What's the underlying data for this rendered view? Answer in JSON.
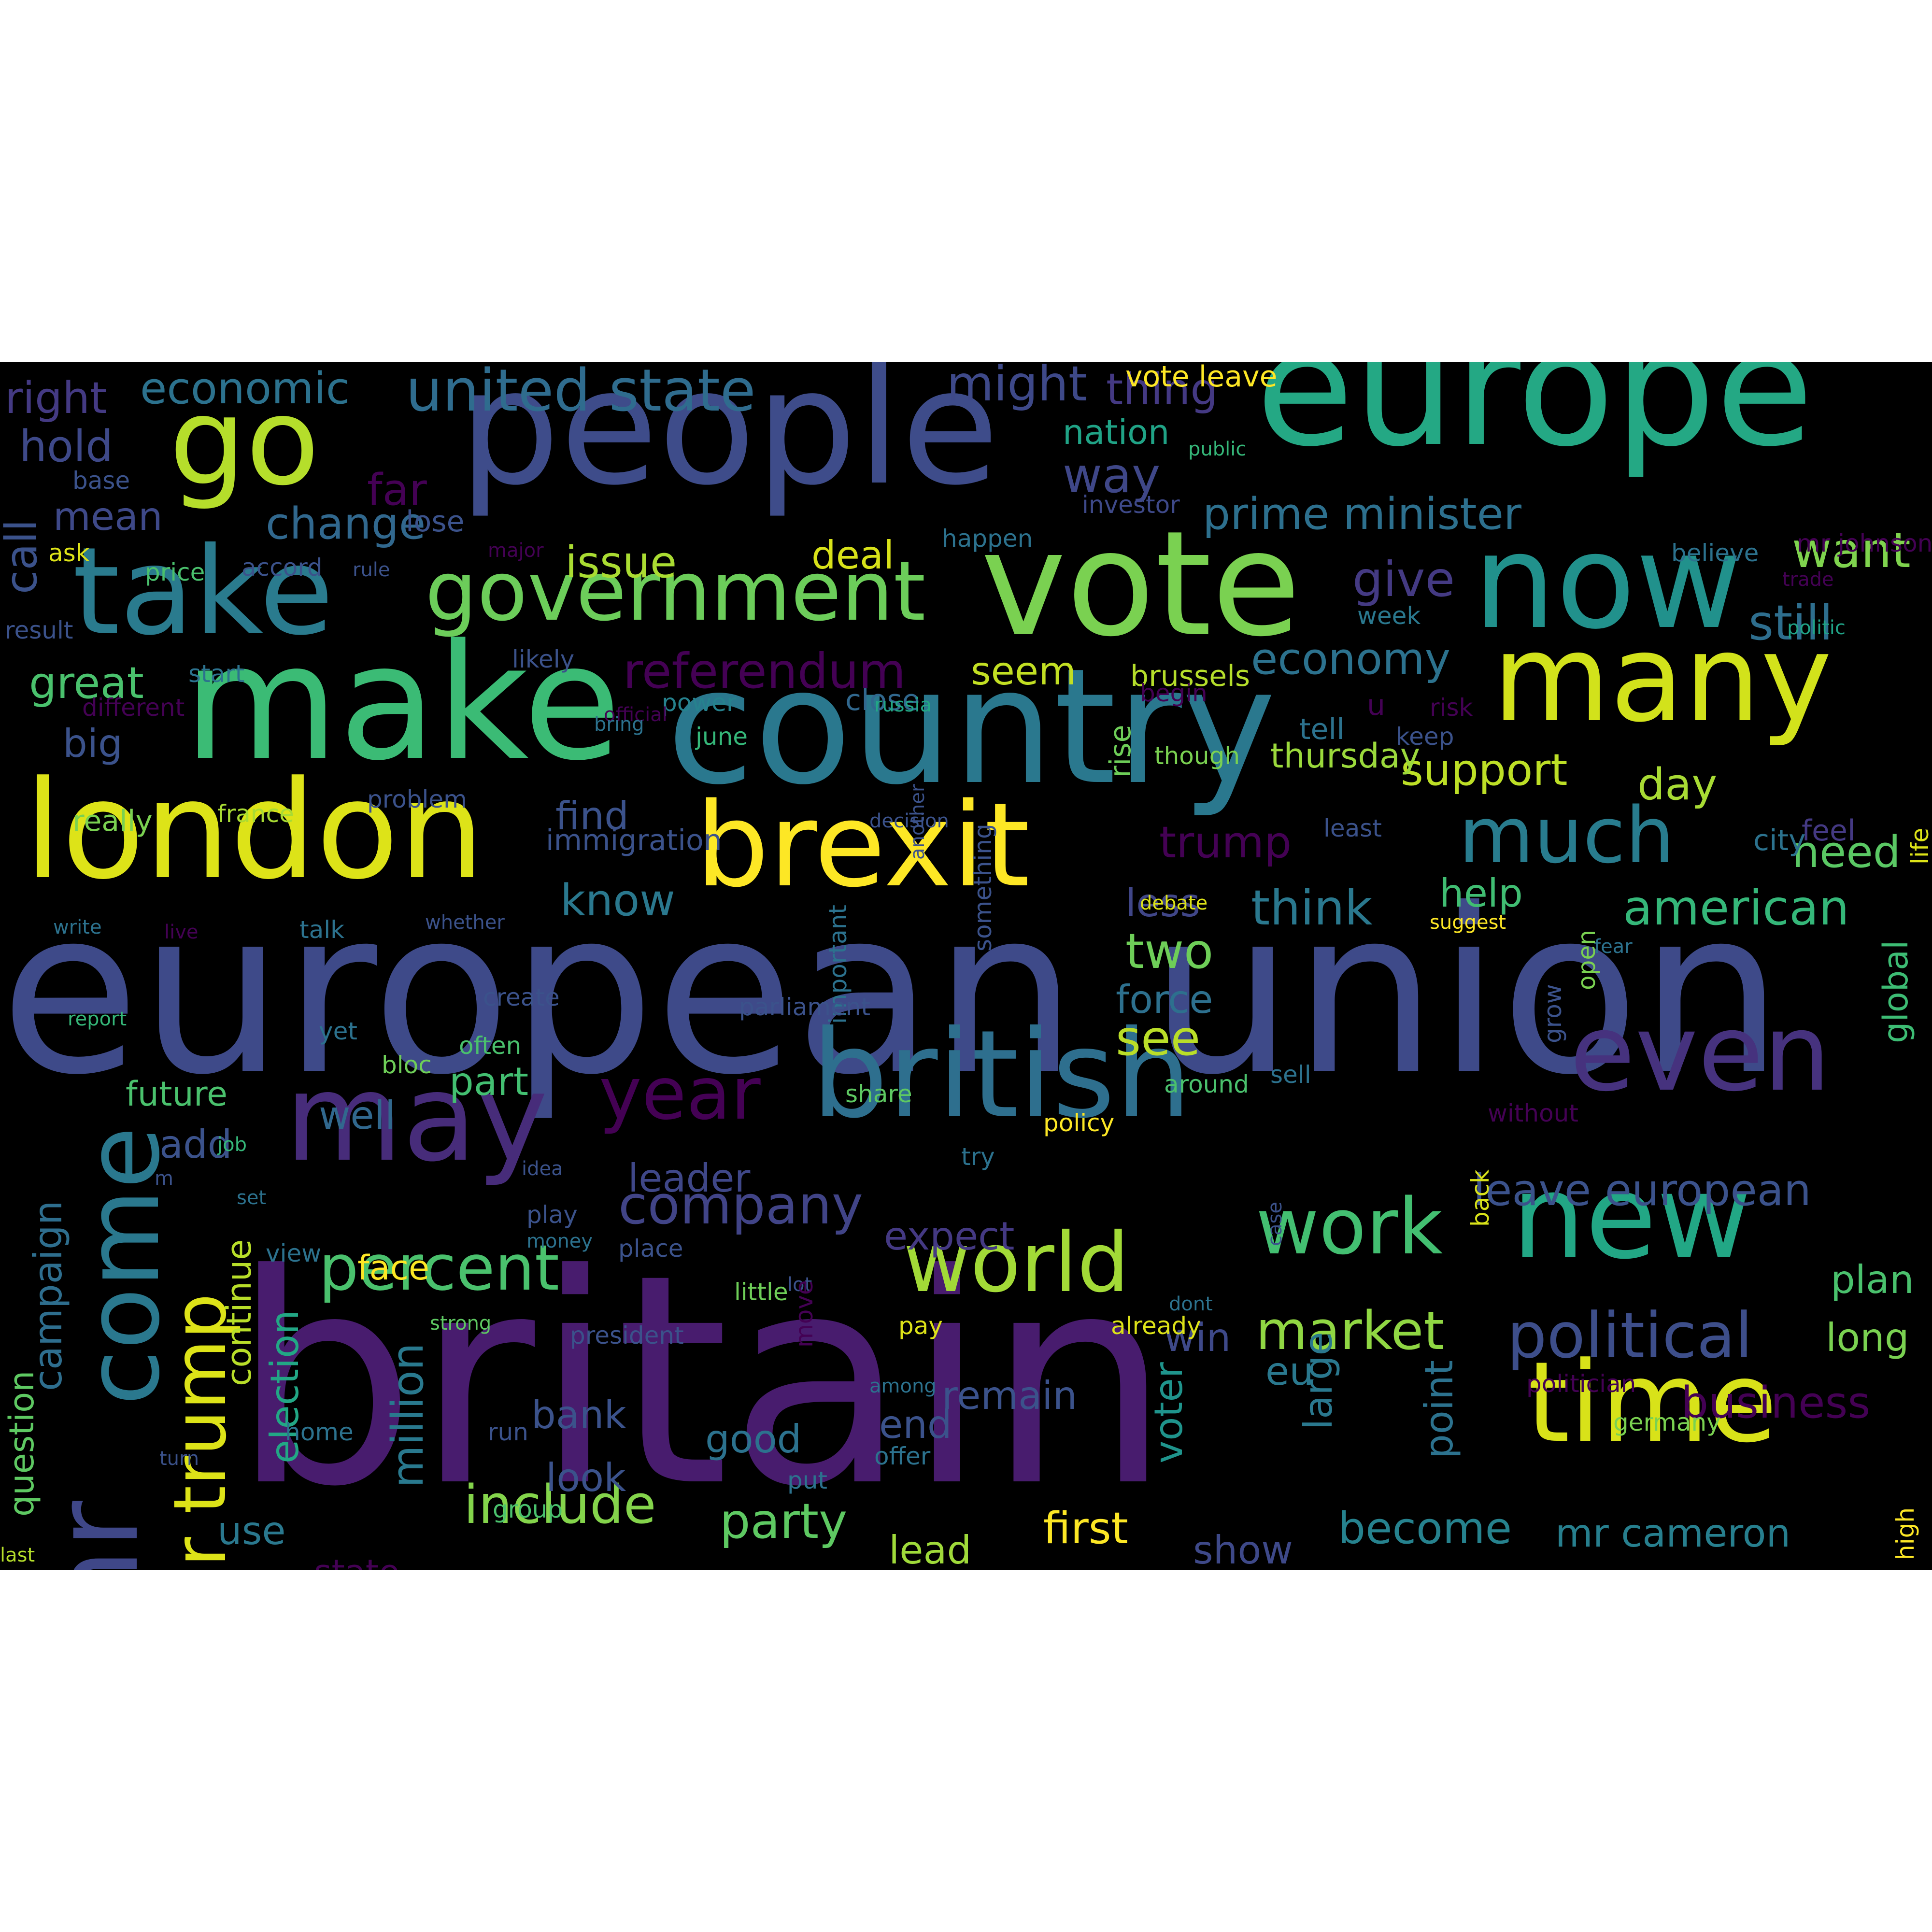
{
  "colors": {
    "page_background": "#ffffff",
    "cloud_background": "#000000"
  },
  "words": [
    {
      "text": "britain",
      "color": "#481c6e"
    },
    {
      "text": "european union",
      "color": "#3e4a89"
    },
    {
      "text": "make",
      "color": "#3bbb75"
    },
    {
      "text": "country",
      "color": "#2a788e"
    },
    {
      "text": "europe",
      "color": "#24a884"
    },
    {
      "text": "people",
      "color": "#3e4c8a"
    },
    {
      "text": "vote",
      "color": "#7ad151"
    },
    {
      "text": "now",
      "color": "#21918c"
    },
    {
      "text": "london",
      "color": "#dde318"
    },
    {
      "text": "brexit",
      "color": "#fde725"
    },
    {
      "text": "take",
      "color": "#2a7b8e"
    },
    {
      "text": "go",
      "color": "#b5de2b"
    },
    {
      "text": "many",
      "color": "#d2e21b"
    },
    {
      "text": "british",
      "color": "#2e6f8e"
    },
    {
      "text": "new",
      "color": "#22a785"
    },
    {
      "text": "time",
      "color": "#d8e219"
    },
    {
      "text": "even",
      "color": "#46327e"
    },
    {
      "text": "may",
      "color": "#472c7a"
    },
    {
      "text": "government",
      "color": "#6ccd5a"
    },
    {
      "text": "mr",
      "color": "#3f4788"
    },
    {
      "text": "come",
      "color": "#2a788e"
    },
    {
      "text": "year",
      "color": "#440154"
    },
    {
      "text": "much",
      "color": "#287c8e"
    },
    {
      "text": "world",
      "color": "#a2da37"
    },
    {
      "text": "work",
      "color": "#43bf71"
    },
    {
      "text": "united state",
      "color": "#2f6c8e"
    },
    {
      "text": "political",
      "color": "#3d4e8a"
    },
    {
      "text": "company",
      "color": "#414487"
    },
    {
      "text": "percent",
      "color": "#4ac16d"
    },
    {
      "text": "prime minister",
      "color": "#2d708e"
    },
    {
      "text": "referendum",
      "color": "#440154"
    },
    {
      "text": "mr trump",
      "color": "#dde318"
    },
    {
      "text": "include",
      "color": "#84d44b"
    },
    {
      "text": "market",
      "color": "#90d743"
    },
    {
      "text": "leave european",
      "color": "#3b528b"
    },
    {
      "text": "american",
      "color": "#35b779"
    },
    {
      "text": "think",
      "color": "#2a788e"
    },
    {
      "text": "economic",
      "color": "#2c728e"
    },
    {
      "text": "change",
      "color": "#31688e"
    },
    {
      "text": "might",
      "color": "#3e4989"
    },
    {
      "text": "thing",
      "color": "#443983"
    },
    {
      "text": "way",
      "color": "#3f4788"
    },
    {
      "text": "nation",
      "color": "#20a386"
    },
    {
      "text": "want",
      "color": "#7fd34e"
    },
    {
      "text": "still",
      "color": "#2e6e8e"
    },
    {
      "text": "give",
      "color": "#443a83"
    },
    {
      "text": "economy",
      "color": "#2c728e"
    },
    {
      "text": "seem",
      "color": "#c2df23"
    },
    {
      "text": "support",
      "color": "#bddf26"
    },
    {
      "text": "day",
      "color": "#a8db34"
    },
    {
      "text": "business",
      "color": "#440154"
    },
    {
      "text": "first",
      "color": "#fde725"
    },
    {
      "text": "party",
      "color": "#5ec962"
    },
    {
      "text": "become",
      "color": "#26828e"
    },
    {
      "text": "mr cameron",
      "color": "#277f8e"
    },
    {
      "text": "see",
      "color": "#bade28"
    },
    {
      "text": "issue",
      "color": "#aadc32"
    },
    {
      "text": "deal",
      "color": "#d8e219"
    },
    {
      "text": "find",
      "color": "#3b528b"
    },
    {
      "text": "know",
      "color": "#2a788e"
    },
    {
      "text": "trump",
      "color": "#440154"
    },
    {
      "text": "less",
      "color": "#404688"
    },
    {
      "text": "help",
      "color": "#40bd72"
    },
    {
      "text": "two",
      "color": "#6ece58"
    },
    {
      "text": "force",
      "color": "#2d708e"
    },
    {
      "text": "need",
      "color": "#5ac864"
    },
    {
      "text": "great",
      "color": "#4ac16d"
    },
    {
      "text": "big",
      "color": "#3b528b"
    },
    {
      "text": "hold",
      "color": "#3e4989"
    },
    {
      "text": "mean",
      "color": "#3e4989"
    },
    {
      "text": "right",
      "color": "#443a83"
    },
    {
      "text": "call",
      "color": "#3b528b"
    },
    {
      "text": "far",
      "color": "#440154"
    },
    {
      "text": "lose",
      "color": "#3b528b"
    },
    {
      "text": "well",
      "color": "#31688e"
    },
    {
      "text": "part",
      "color": "#43bf71"
    },
    {
      "text": "add",
      "color": "#3b528b"
    },
    {
      "text": "leader",
      "color": "#3f4788"
    },
    {
      "text": "expect",
      "color": "#443983"
    },
    {
      "text": "face",
      "color": "#fde725"
    },
    {
      "text": "remain",
      "color": "#3b528b"
    },
    {
      "text": "win",
      "color": "#3e4989"
    },
    {
      "text": "plan",
      "color": "#4ac16d"
    },
    {
      "text": "long",
      "color": "#7ad151"
    },
    {
      "text": "eu",
      "color": "#2a788e"
    },
    {
      "text": "large",
      "color": "#2a788e"
    },
    {
      "text": "voter",
      "color": "#1f948c"
    },
    {
      "text": "point",
      "color": "#2c728e"
    },
    {
      "text": "bank",
      "color": "#3b528b"
    },
    {
      "text": "good",
      "color": "#2c728e"
    },
    {
      "text": "look",
      "color": "#3b528b"
    },
    {
      "text": "end",
      "color": "#3b528b"
    },
    {
      "text": "lead",
      "color": "#9fda3a"
    },
    {
      "text": "show",
      "color": "#3e4989"
    },
    {
      "text": "use",
      "color": "#2a788e"
    },
    {
      "text": "state",
      "color": "#440154"
    },
    {
      "text": "million",
      "color": "#29798e"
    },
    {
      "text": "election",
      "color": "#22a785"
    },
    {
      "text": "campaign",
      "color": "#2e6e8e"
    },
    {
      "text": "question",
      "color": "#5ec962"
    },
    {
      "text": "continue",
      "color": "#b8de29"
    },
    {
      "text": "future",
      "color": "#4ac16d"
    },
    {
      "text": "global",
      "color": "#3dbc74"
    },
    {
      "text": "feel",
      "color": "#443983"
    },
    {
      "text": "city",
      "color": "#2c728e"
    },
    {
      "text": "tell",
      "color": "#2c728e"
    },
    {
      "text": "u",
      "color": "#440154"
    },
    {
      "text": "thursday",
      "color": "#9bd93c"
    },
    {
      "text": "brussels",
      "color": "#b5de2b"
    },
    {
      "text": "close",
      "color": "#31688e"
    },
    {
      "text": "power",
      "color": "#26828e"
    },
    {
      "text": "vote leave",
      "color": "#fde725"
    },
    {
      "text": "believe",
      "color": "#2c728e"
    },
    {
      "text": "mr johnson",
      "color": "#440154"
    },
    {
      "text": "trade",
      "color": "#440154"
    },
    {
      "text": "politic",
      "color": "#20a386"
    },
    {
      "text": "life",
      "color": "#dde318"
    },
    {
      "text": "public",
      "color": "#35b779"
    },
    {
      "text": "investor",
      "color": "#3e4989"
    },
    {
      "text": "happen",
      "color": "#2c728e"
    },
    {
      "text": "week",
      "color": "#2a788e"
    },
    {
      "text": "risk",
      "color": "#440154"
    },
    {
      "text": "keep",
      "color": "#3b528b"
    },
    {
      "text": "though",
      "color": "#7ad151"
    },
    {
      "text": "least",
      "color": "#3b528b"
    },
    {
      "text": "decision",
      "color": "#3b528b"
    },
    {
      "text": "rise",
      "color": "#6ece58"
    },
    {
      "text": "russia",
      "color": "#22a785"
    },
    {
      "text": "begin",
      "color": "#440154"
    },
    {
      "text": "june",
      "color": "#35b779"
    },
    {
      "text": "official",
      "color": "#440154"
    },
    {
      "text": "bring",
      "color": "#2c728e"
    },
    {
      "text": "likely",
      "color": "#3b528b"
    },
    {
      "text": "start",
      "color": "#2c728e"
    },
    {
      "text": "different",
      "color": "#440154"
    },
    {
      "text": "really",
      "color": "#7ad151"
    },
    {
      "text": "france",
      "color": "#a8db34"
    },
    {
      "text": "problem",
      "color": "#3b528b"
    },
    {
      "text": "immigration",
      "color": "#3b528b"
    },
    {
      "text": "another",
      "color": "#3b528b"
    },
    {
      "text": "major",
      "color": "#440154"
    },
    {
      "text": "rule",
      "color": "#3b528b"
    },
    {
      "text": "accord",
      "color": "#3b528b"
    },
    {
      "text": "price",
      "color": "#4ac16d"
    },
    {
      "text": "ask",
      "color": "#dde318"
    },
    {
      "text": "result",
      "color": "#3b528b"
    },
    {
      "text": "base",
      "color": "#3b528b"
    },
    {
      "text": "write",
      "color": "#2c728e"
    },
    {
      "text": "live",
      "color": "#440154"
    },
    {
      "text": "talk",
      "color": "#2c728e"
    },
    {
      "text": "whether",
      "color": "#3b528b"
    },
    {
      "text": "debate",
      "color": "#dde318"
    },
    {
      "text": "suggest",
      "color": "#fde725"
    },
    {
      "text": "fear",
      "color": "#2c728e"
    },
    {
      "text": "grow",
      "color": "#3b528b"
    },
    {
      "text": "open",
      "color": "#7ad151"
    },
    {
      "text": "something",
      "color": "#3b528b"
    },
    {
      "text": "important",
      "color": "#2c728e"
    },
    {
      "text": "parliament",
      "color": "#3b528b"
    },
    {
      "text": "create",
      "color": "#3b528b"
    },
    {
      "text": "often",
      "color": "#4ac16d"
    },
    {
      "text": "yet",
      "color": "#2c728e"
    },
    {
      "text": "bloc",
      "color": "#6ece58"
    },
    {
      "text": "report",
      "color": "#35b779"
    },
    {
      "text": "share",
      "color": "#5ec962"
    },
    {
      "text": "around",
      "color": "#4ac16d"
    },
    {
      "text": "sell",
      "color": "#2c728e"
    },
    {
      "text": "without",
      "color": "#440154"
    },
    {
      "text": "job",
      "color": "#35b779"
    },
    {
      "text": "idea",
      "color": "#3b528b"
    },
    {
      "text": "m",
      "color": "#3b528b"
    },
    {
      "text": "set",
      "color": "#2c728e"
    },
    {
      "text": "try",
      "color": "#2c728e"
    },
    {
      "text": "play",
      "color": "#3b528b"
    },
    {
      "text": "money",
      "color": "#2c728e"
    },
    {
      "text": "view",
      "color": "#2c728e"
    },
    {
      "text": "place",
      "color": "#3b528b"
    },
    {
      "text": "policy",
      "color": "#fde725"
    },
    {
      "text": "back",
      "color": "#d8e219"
    },
    {
      "text": "dont",
      "color": "#2c728e"
    },
    {
      "text": "lot",
      "color": "#3b528b"
    },
    {
      "text": "pay",
      "color": "#dde318"
    },
    {
      "text": "already",
      "color": "#dde318"
    },
    {
      "text": "strong",
      "color": "#5ec962"
    },
    {
      "text": "president",
      "color": "#3b528b"
    },
    {
      "text": "little",
      "color": "#6ece58"
    },
    {
      "text": "move",
      "color": "#440154"
    },
    {
      "text": "among",
      "color": "#2c728e"
    },
    {
      "text": "case",
      "color": "#3b528b"
    },
    {
      "text": "politician",
      "color": "#440154"
    },
    {
      "text": "germany",
      "color": "#7ad151"
    },
    {
      "text": "home",
      "color": "#2c728e"
    },
    {
      "text": "turn",
      "color": "#3b528b"
    },
    {
      "text": "run",
      "color": "#3b528b"
    },
    {
      "text": "put",
      "color": "#2c728e"
    },
    {
      "text": "offer",
      "color": "#2c728e"
    },
    {
      "text": "group",
      "color": "#4ac16d"
    },
    {
      "text": "high",
      "color": "#fde725"
    },
    {
      "text": "last",
      "color": "#b5de2b"
    },
    {
      "text": "investment",
      "color": "#20a386"
    }
  ]
}
